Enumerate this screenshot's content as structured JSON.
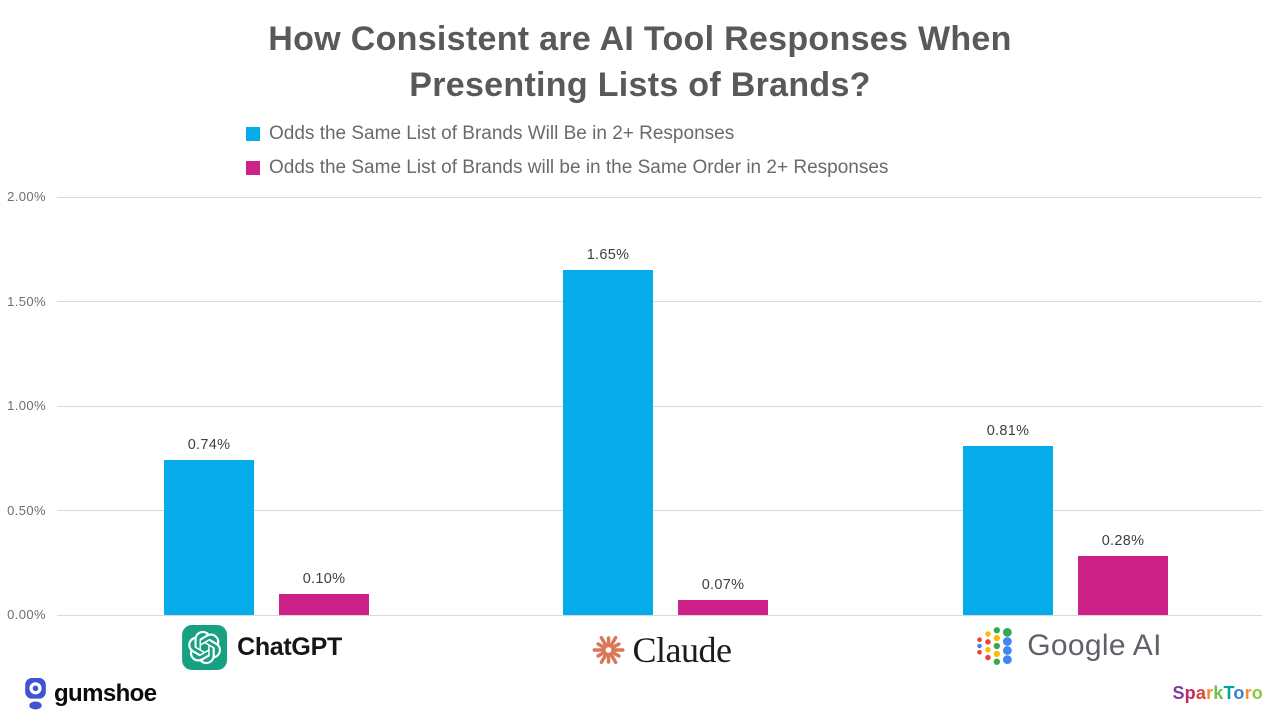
{
  "title": {
    "line1": "How Consistent are AI Tool Responses When",
    "line2": "Presenting Lists of Brands?"
  },
  "legend": [
    {
      "label": "Odds the Same List of Brands Will Be in 2+ Responses",
      "color": "#06ABE9"
    },
    {
      "label": "Odds the Same List of Brands will be in the Same Order in 2+ Responses",
      "color": "#CE2187"
    }
  ],
  "chart_data": {
    "type": "bar",
    "title": "How Consistent are AI Tool Responses When Presenting Lists of Brands?",
    "categories": [
      "ChatGPT",
      "Claude",
      "Google AI"
    ],
    "series": [
      {
        "name": "Odds the Same List of Brands Will Be in 2+ Responses",
        "color": "#06ABE9",
        "values": [
          0.74,
          1.65,
          0.81
        ],
        "labels": [
          "0.74%",
          "1.65%",
          "0.81%"
        ]
      },
      {
        "name": "Odds the Same List of Brands will be in the Same Order in 2+ Responses",
        "color": "#CE2187",
        "values": [
          0.1,
          0.07,
          0.28
        ],
        "labels": [
          "0.10%",
          "0.07%",
          "0.28%"
        ]
      }
    ],
    "xlabel": "",
    "ylabel": "",
    "ylim": [
      0,
      2.0
    ],
    "yticks": [
      {
        "value": 0.0,
        "label": "0.00%"
      },
      {
        "value": 0.5,
        "label": "0.50%"
      },
      {
        "value": 1.0,
        "label": "1.00%"
      },
      {
        "value": 1.5,
        "label": "1.50%"
      },
      {
        "value": 2.0,
        "label": "2.00%"
      }
    ],
    "grid": true,
    "legend_position": "top-left"
  },
  "brands": {
    "chatgpt": {
      "icon": "openai-knot-icon",
      "icon_color": "#17A081"
    },
    "claude": {
      "icon": "claude-starburst-icon",
      "icon_color": "#D97757"
    },
    "google": {
      "icon": "google-dots-icon",
      "dot_colors": {
        "red": "#EA4335",
        "yellow": "#FBBC04",
        "green": "#34A853",
        "blue": "#4285F4"
      }
    }
  },
  "footer": {
    "gumshoe": {
      "label": "gumshoe",
      "icon": "shoeprint-icon",
      "icon_color": "#4053D3"
    },
    "sparktoro": {
      "label": "SparkToro",
      "letters": [
        {
          "ch": "S",
          "color": "#7D3F98"
        },
        {
          "ch": "p",
          "color": "#C42565"
        },
        {
          "ch": "a",
          "color": "#E2433C"
        },
        {
          "ch": "r",
          "color": "#F18F34"
        },
        {
          "ch": "k",
          "color": "#70BF4A"
        },
        {
          "ch": "T",
          "color": "#00A79D"
        },
        {
          "ch": "o",
          "color": "#3A7DD9"
        },
        {
          "ch": "r",
          "color": "#F18F34"
        },
        {
          "ch": "o",
          "color": "#8DC63F"
        }
      ]
    }
  }
}
